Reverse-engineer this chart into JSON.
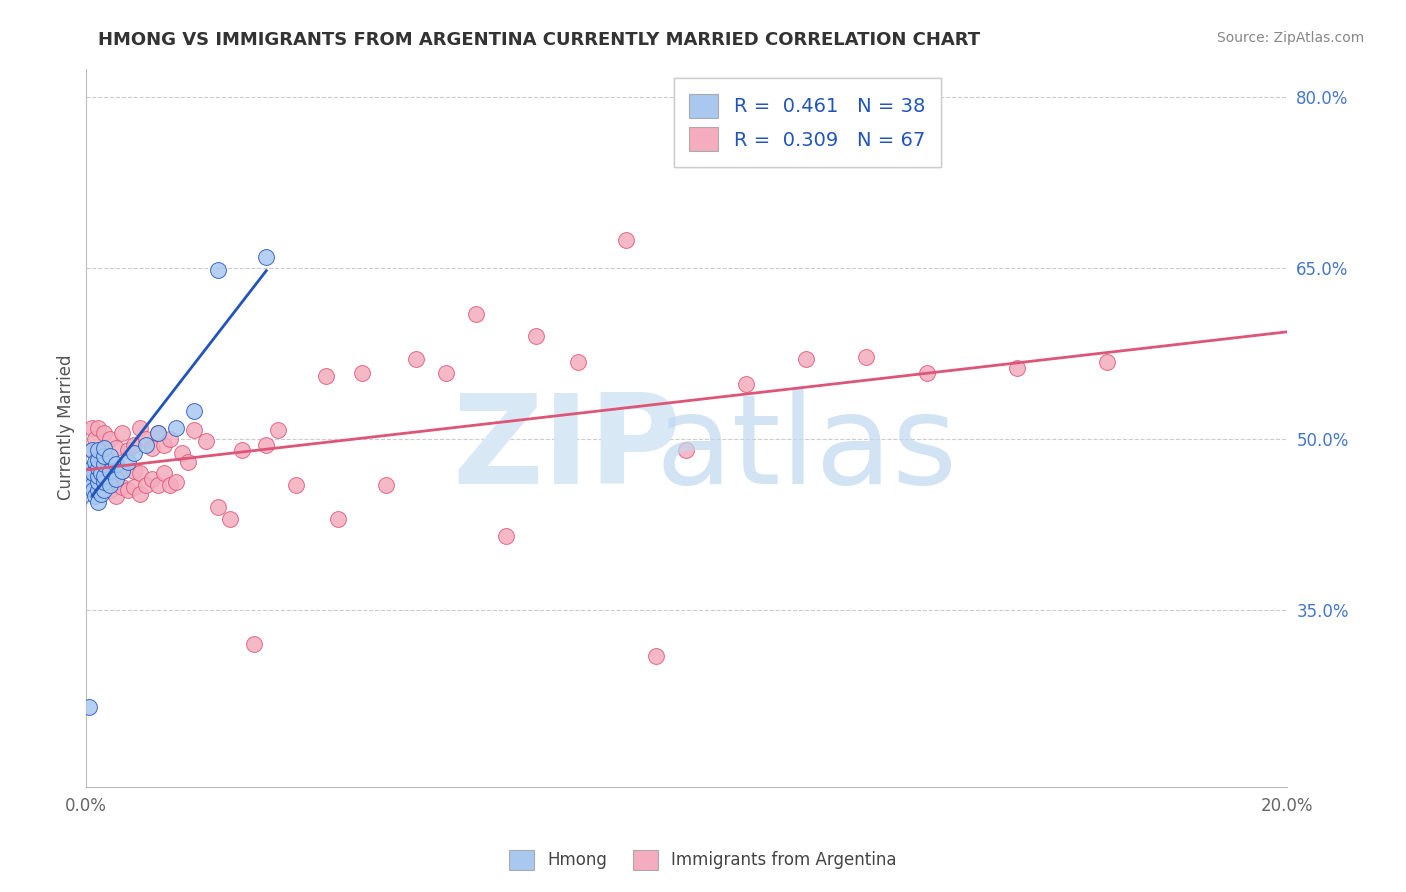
{
  "title": "HMONG VS IMMIGRANTS FROM ARGENTINA CURRENTLY MARRIED CORRELATION CHART",
  "source": "Source: ZipAtlas.com",
  "ylabel": "Currently Married",
  "xlim": [
    0.0,
    0.2
  ],
  "ylim": [
    0.195,
    0.825
  ],
  "hmong_color": "#A8C8F0",
  "argentina_color": "#F4ACBE",
  "hmong_line_color": "#2255BB",
  "argentina_line_color": "#DD5577",
  "hmong_r": 0.461,
  "hmong_n": 38,
  "argentina_r": 0.309,
  "argentina_n": 67,
  "ytick_positions": [
    0.35,
    0.5,
    0.65,
    0.8
  ],
  "ytick_labels": [
    "35.0%",
    "50.0%",
    "65.0%",
    "80.0%"
  ],
  "grid_lines": [
    0.35,
    0.5,
    0.65,
    0.8
  ],
  "hmong_x": [
    0.0005,
    0.0008,
    0.001,
    0.001,
    0.001,
    0.0012,
    0.0012,
    0.0015,
    0.0015,
    0.002,
    0.002,
    0.002,
    0.002,
    0.002,
    0.002,
    0.002,
    0.0025,
    0.0025,
    0.003,
    0.003,
    0.003,
    0.003,
    0.003,
    0.003,
    0.004,
    0.004,
    0.004,
    0.005,
    0.005,
    0.006,
    0.007,
    0.008,
    0.01,
    0.012,
    0.015,
    0.018,
    0.022,
    0.03
  ],
  "hmong_y": [
    0.265,
    0.465,
    0.46,
    0.475,
    0.49,
    0.455,
    0.47,
    0.45,
    0.48,
    0.445,
    0.455,
    0.462,
    0.468,
    0.475,
    0.482,
    0.49,
    0.452,
    0.47,
    0.455,
    0.462,
    0.468,
    0.478,
    0.485,
    0.492,
    0.46,
    0.472,
    0.485,
    0.465,
    0.478,
    0.472,
    0.48,
    0.488,
    0.495,
    0.505,
    0.51,
    0.525,
    0.648,
    0.66
  ],
  "argentina_x": [
    0.001,
    0.001,
    0.0015,
    0.002,
    0.002,
    0.002,
    0.003,
    0.003,
    0.003,
    0.004,
    0.004,
    0.004,
    0.005,
    0.005,
    0.005,
    0.006,
    0.006,
    0.006,
    0.007,
    0.007,
    0.008,
    0.008,
    0.008,
    0.009,
    0.009,
    0.009,
    0.01,
    0.01,
    0.011,
    0.011,
    0.012,
    0.012,
    0.013,
    0.013,
    0.014,
    0.014,
    0.015,
    0.016,
    0.017,
    0.018,
    0.02,
    0.022,
    0.024,
    0.026,
    0.028,
    0.03,
    0.032,
    0.035,
    0.04,
    0.042,
    0.046,
    0.05,
    0.055,
    0.06,
    0.065,
    0.07,
    0.075,
    0.082,
    0.09,
    0.095,
    0.1,
    0.11,
    0.12,
    0.13,
    0.14,
    0.155,
    0.17
  ],
  "argentina_y": [
    0.49,
    0.51,
    0.5,
    0.47,
    0.485,
    0.51,
    0.46,
    0.48,
    0.505,
    0.455,
    0.472,
    0.5,
    0.45,
    0.468,
    0.492,
    0.458,
    0.472,
    0.505,
    0.455,
    0.49,
    0.458,
    0.472,
    0.495,
    0.452,
    0.47,
    0.51,
    0.46,
    0.5,
    0.465,
    0.492,
    0.46,
    0.505,
    0.47,
    0.495,
    0.46,
    0.5,
    0.462,
    0.488,
    0.48,
    0.508,
    0.498,
    0.44,
    0.43,
    0.49,
    0.32,
    0.495,
    0.508,
    0.46,
    0.555,
    0.43,
    0.558,
    0.46,
    0.57,
    0.558,
    0.61,
    0.415,
    0.59,
    0.568,
    0.675,
    0.31,
    0.49,
    0.548,
    0.57,
    0.572,
    0.558,
    0.562,
    0.568
  ]
}
